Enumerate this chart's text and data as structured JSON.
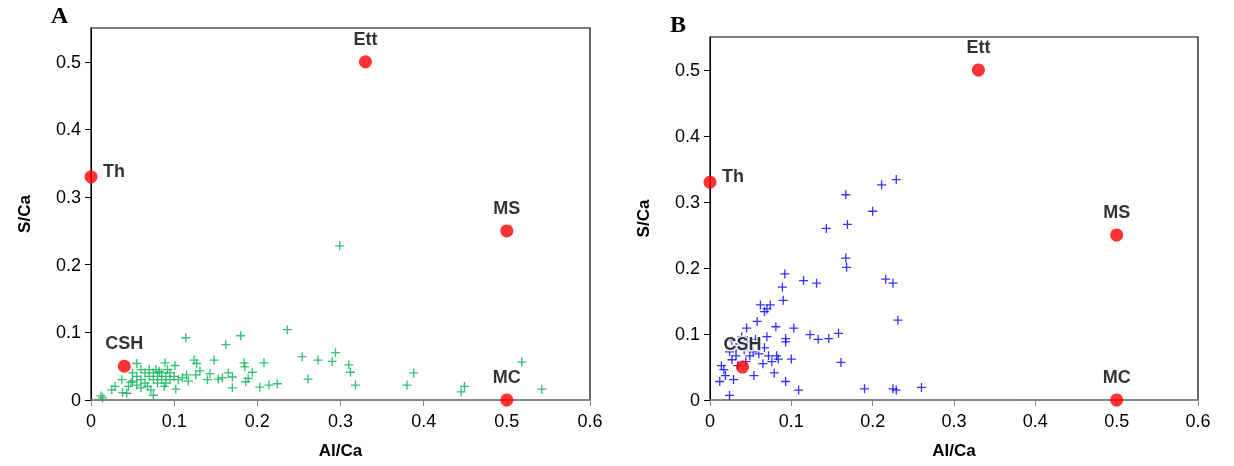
{
  "chart_data": [
    {
      "type": "scatter",
      "title": "A",
      "xlabel": "Al/Ca",
      "ylabel": "S/Ca",
      "xlim": [
        0,
        0.6
      ],
      "ylim": [
        0,
        0.55
      ],
      "xticks": [
        0,
        0.1,
        0.2,
        0.3,
        0.4,
        0.5,
        0.6
      ],
      "yticks": [
        0,
        0.1,
        0.2,
        0.3,
        0.4,
        0.5
      ],
      "grid": false,
      "annotations": [
        {
          "text": "Ett",
          "x": 0.33,
          "y": 0.5
        },
        {
          "text": "Th",
          "x": 0,
          "y": 0.33
        },
        {
          "text": "MS",
          "x": 0.5,
          "y": 0.25
        },
        {
          "text": "CSH",
          "x": 0.04,
          "y": 0.05
        },
        {
          "text": "MC",
          "x": 0.5,
          "y": 0
        }
      ],
      "series": [
        {
          "color": "#00b050",
          "marker": "cross",
          "x": [
            0.299,
            0.236,
            0.114,
            0.18,
            0.162,
            0.294,
            0.29,
            0.254,
            0.273,
            0.31,
            0.312,
            0.318,
            0.261,
            0.388,
            0.38,
            0.449,
            0.445,
            0.518,
            0.542,
            0.224,
            0.214,
            0.203,
            0.208,
            0.194,
            0.184,
            0.185,
            0.189,
            0.186,
            0.17,
            0.165,
            0.17,
            0.148,
            0.153,
            0.158,
            0.143,
            0.14,
            0.127,
            0.124,
            0.131,
            0.126,
            0.117,
            0.115,
            0.11,
            0.102,
            0.101,
            0.089,
            0.012,
            0.014,
            0.025,
            0.029,
            0.038,
            0.043,
            0.037,
            0.048,
            0.055,
            0.075,
            0.05,
            0.055,
            0.06,
            0.06,
            0.065,
            0.065,
            0.07,
            0.07,
            0.075,
            0.075,
            0.08,
            0.08,
            0.085,
            0.085,
            0.09,
            0.09,
            0.095,
            0.095,
            0.045,
            0.05,
            0.055,
            0.06,
            0.068,
            0.072,
            0.078,
            0.082,
            0.088,
            0.092,
            0.1,
            0.105
          ],
          "values": [
            0.228,
            0.104,
            0.092,
            0.095,
            0.082,
            0.07,
            0.057,
            0.064,
            0.059,
            0.052,
            0.041,
            0.022,
            0.031,
            0.04,
            0.022,
            0.02,
            0.012,
            0.056,
            0.016,
            0.024,
            0.022,
            0.019,
            0.055,
            0.041,
            0.055,
            0.049,
            0.032,
            0.027,
            0.034,
            0.04,
            0.018,
            0.059,
            0.031,
            0.033,
            0.039,
            0.03,
            0.054,
            0.059,
            0.043,
            0.037,
            0.028,
            0.037,
            0.033,
            0.016,
            0.051,
            0.055,
            0.006,
            0.003,
            0.015,
            0.02,
            0.011,
            0.01,
            0.03,
            0.026,
            0.054,
            0.007,
            0.04,
            0.035,
            0.045,
            0.03,
            0.04,
            0.025,
            0.035,
            0.045,
            0.03,
            0.04,
            0.035,
            0.025,
            0.04,
            0.03,
            0.035,
            0.025,
            0.04,
            0.03,
            0.02,
            0.028,
            0.022,
            0.018,
            0.02,
            0.015,
            0.045,
            0.042,
            0.02,
            0.045,
            0.035,
            0.03
          ]
        },
        {
          "color": "#ff0000",
          "marker": "circle",
          "x": [
            0.33,
            0,
            0.5,
            0.04,
            0.5
          ],
          "values": [
            0.5,
            0.33,
            0.25,
            0.05,
            0
          ]
        }
      ]
    },
    {
      "type": "scatter",
      "title": "B",
      "xlabel": "Al/Ca",
      "ylabel": "S/Ca",
      "xlim": [
        0,
        0.6
      ],
      "ylim": [
        0,
        0.55
      ],
      "xticks": [
        0,
        0.1,
        0.2,
        0.3,
        0.4,
        0.5,
        0.6
      ],
      "yticks": [
        0,
        0.1,
        0.2,
        0.3,
        0.4,
        0.5
      ],
      "grid": false,
      "annotations": [
        {
          "text": "Ett",
          "x": 0.33,
          "y": 0.5
        },
        {
          "text": "Th",
          "x": 0,
          "y": 0.33
        },
        {
          "text": "MS",
          "x": 0.5,
          "y": 0.25
        },
        {
          "text": "CSH",
          "x": 0.04,
          "y": 0.05
        },
        {
          "text": "MC",
          "x": 0.5,
          "y": 0
        }
      ],
      "series": [
        {
          "color": "#0000ff",
          "marker": "cross",
          "x": [
            0.229,
            0.211,
            0.167,
            0.2,
            0.169,
            0.143,
            0.167,
            0.168,
            0.216,
            0.225,
            0.231,
            0.092,
            0.115,
            0.131,
            0.089,
            0.09,
            0.158,
            0.146,
            0.133,
            0.123,
            0.161,
            0.103,
            0.1,
            0.093,
            0.109,
            0.19,
            0.225,
            0.229,
            0.26,
            0.024,
            0.054,
            0.093,
            0.093,
            0.081,
            0.074,
            0.062,
            0.067,
            0.07,
            0.058,
            0.045,
            0.079,
            0.082,
            0.084,
            0.012,
            0.014,
            0.017,
            0.019,
            0.029,
            0.024,
            0.027,
            0.032,
            0.034,
            0.037,
            0.042,
            0.046,
            0.051,
            0.053,
            0.056,
            0.06,
            0.065,
            0.067,
            0.07,
            0.072,
            0.076,
            0.039,
            0.032,
            0.027,
            0.049,
            0.044
          ],
          "values": [
            0.334,
            0.326,
            0.311,
            0.286,
            0.266,
            0.26,
            0.215,
            0.201,
            0.183,
            0.177,
            0.121,
            0.191,
            0.181,
            0.177,
            0.171,
            0.151,
            0.101,
            0.093,
            0.092,
            0.099,
            0.057,
            0.109,
            0.062,
            0.028,
            0.015,
            0.017,
            0.017,
            0.015,
            0.019,
            0.007,
            0.037,
            0.093,
            0.088,
            0.111,
            0.144,
            0.144,
            0.134,
            0.138,
            0.119,
            0.109,
            0.041,
            0.067,
            0.062,
            0.028,
            0.052,
            0.046,
            0.037,
            0.031,
            0.073,
            0.061,
            0.067,
            0.052,
            0.085,
            0.076,
            0.09,
            0.085,
            0.073,
            0.092,
            0.07,
            0.055,
            0.079,
            0.096,
            0.067,
            0.058,
            0.096,
            0.079,
            0.09,
            0.067,
            0.058
          ]
        },
        {
          "color": "#ff0000",
          "marker": "circle",
          "x": [
            0.33,
            0,
            0.5,
            0.04,
            0.5
          ],
          "values": [
            0.5,
            0.33,
            0.25,
            0.05,
            0
          ]
        }
      ]
    }
  ]
}
